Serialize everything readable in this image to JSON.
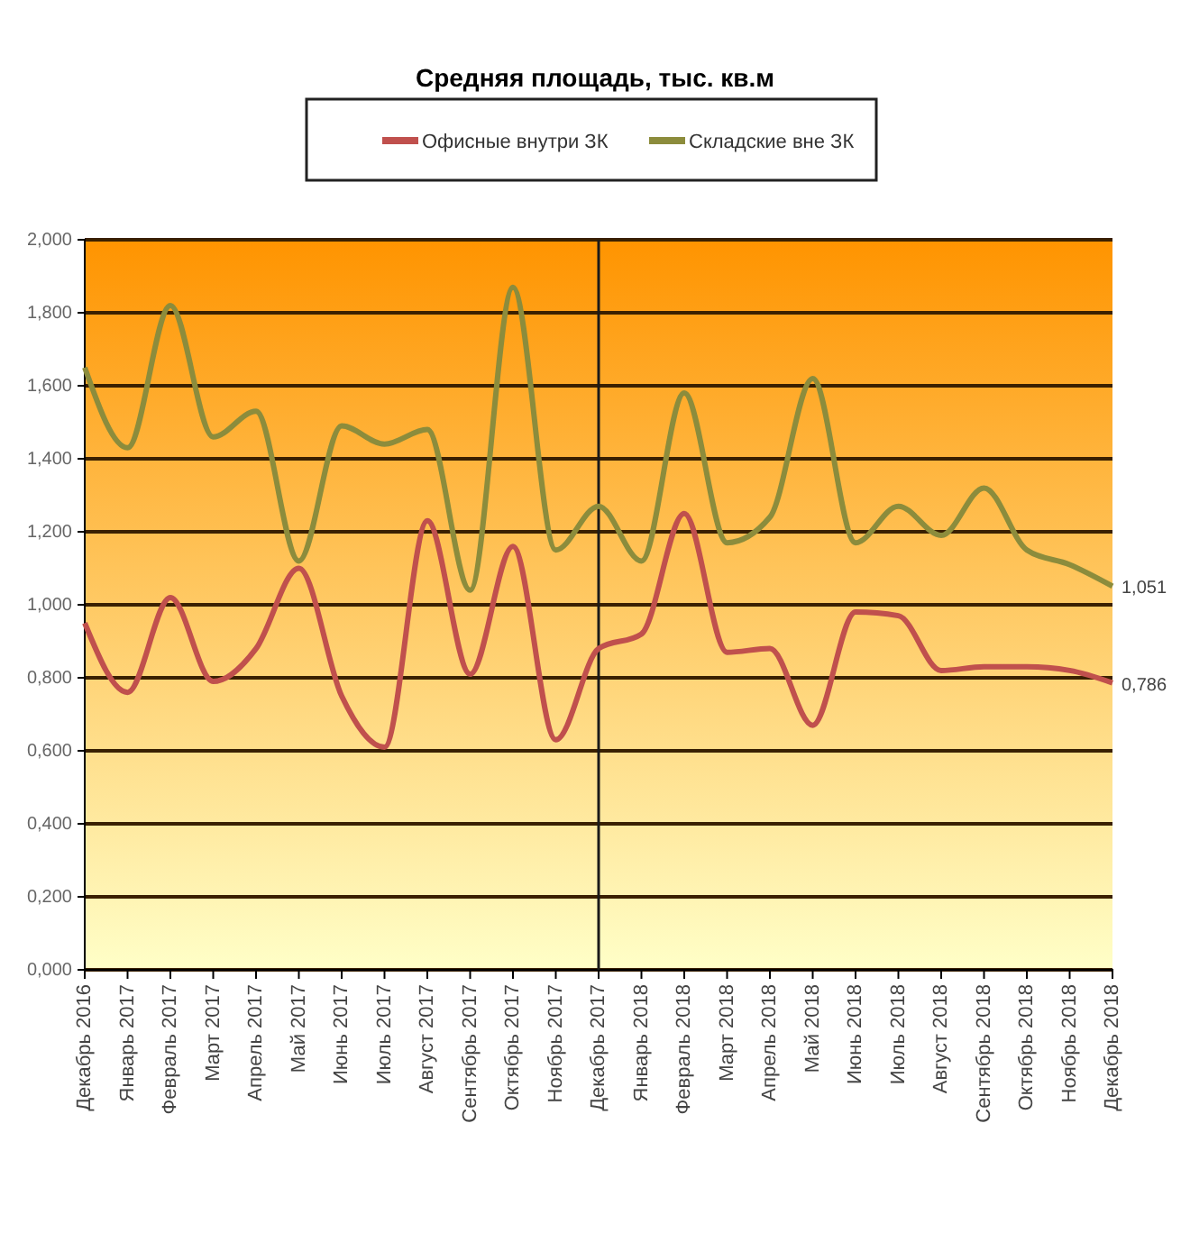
{
  "chart_data": {
    "type": "line",
    "title": "Средняя площадь, тыс. кв.м",
    "categories": [
      "Декабрь 2016",
      "Январь 2017",
      "Февраль 2017",
      "Март 2017",
      "Апрель 2017",
      "Май 2017",
      "Июнь 2017",
      "Июль 2017",
      "Август 2017",
      "Сентябрь 2017",
      "Октябрь 2017",
      "Ноябрь 2017",
      "Декабрь 2017",
      "Январь 2018",
      "Февраль 2018",
      "Март 2018",
      "Апрель 2018",
      "Май 2018",
      "Июнь 2018",
      "Июль 2018",
      "Август 2018",
      "Сентябрь 2018",
      "Октябрь 2018",
      "Ноябрь 2018",
      "Декабрь 2018"
    ],
    "series": [
      {
        "name": "Офисные внутри ЗК",
        "color": "#c0504d",
        "values": [
          0.95,
          0.76,
          1.02,
          0.79,
          0.88,
          1.1,
          0.75,
          0.61,
          1.23,
          0.81,
          1.16,
          0.63,
          0.88,
          0.92,
          1.25,
          0.87,
          0.88,
          0.67,
          0.98,
          0.97,
          0.82,
          0.83,
          0.83,
          0.82,
          0.786
        ],
        "value_labels": [
          null,
          null,
          null,
          null,
          null,
          null,
          null,
          null,
          null,
          null,
          null,
          null,
          null,
          null,
          null,
          null,
          null,
          null,
          null,
          null,
          null,
          null,
          null,
          null,
          "0,786"
        ]
      },
      {
        "name": "Складские вне ЗК",
        "color": "#8c8c3c",
        "values": [
          1.65,
          1.43,
          1.82,
          1.46,
          1.53,
          1.12,
          1.49,
          1.44,
          1.48,
          1.04,
          1.87,
          1.15,
          1.27,
          1.12,
          1.58,
          1.17,
          1.24,
          1.62,
          1.17,
          1.27,
          1.19,
          1.32,
          1.15,
          1.11,
          1.051
        ],
        "value_labels": [
          null,
          null,
          null,
          null,
          null,
          null,
          null,
          null,
          null,
          null,
          null,
          null,
          null,
          null,
          null,
          null,
          null,
          null,
          null,
          null,
          null,
          null,
          null,
          null,
          "1,051"
        ]
      }
    ],
    "ylim": [
      0,
      2
    ],
    "yticks": [
      {
        "value": 0,
        "label": "0,000"
      },
      {
        "value": 0.2,
        "label": "0,200"
      },
      {
        "value": 0.4,
        "label": "0,400"
      },
      {
        "value": 0.6,
        "label": "0,600"
      },
      {
        "value": 0.8,
        "label": "0,800"
      },
      {
        "value": 1,
        "label": "1,000"
      },
      {
        "value": 1.2,
        "label": "1,200"
      },
      {
        "value": 1.4,
        "label": "1,400"
      },
      {
        "value": 1.6,
        "label": "1,600"
      },
      {
        "value": 1.8,
        "label": "1,800"
      },
      {
        "value": 2,
        "label": "2,000"
      }
    ],
    "grid": "y",
    "legend": "top",
    "line_style": "solid",
    "ref_lines": [
      {
        "axis": "x",
        "value": "Декабрь 2017",
        "color": "#1a1a1a"
      }
    ]
  }
}
